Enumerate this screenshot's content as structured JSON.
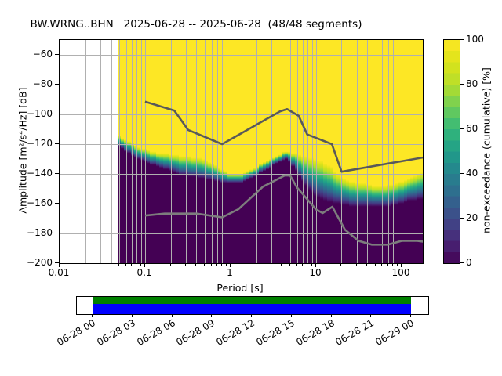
{
  "title": "BW.WRNG..BHN   2025-06-28 -- 2025-06-28  (48/48 segments)",
  "station": "BW.WRNG..BHN",
  "date_range": "2025-06-28 -- 2025-06-28",
  "segments": "48/48 segments",
  "axes": {
    "xlabel": "Period [s]",
    "ylabel": "Amplitude [m²/s⁴/Hz] [dB]",
    "x_tick_labels": [
      "0.01",
      "0.1",
      "1",
      "10",
      "100"
    ],
    "y_tick_labels": [
      "−60",
      "−80",
      "−100",
      "−120",
      "−140",
      "−160",
      "−180",
      "−200"
    ]
  },
  "colorbar": {
    "label": "non-exceedance (cumulative) [%]",
    "tick_labels": [
      "0",
      "20",
      "40",
      "60",
      "80",
      "100"
    ],
    "colormap": "viridis"
  },
  "timeline": {
    "tick_labels": [
      "06-28 00",
      "06-28 03",
      "06-28 06",
      "06-28 09",
      "06-28 12",
      "06-28 15",
      "06-28 18",
      "06-28 21",
      "06-29 00"
    ],
    "coverage_color_top": "#008000",
    "coverage_color_bottom": "#0000ff"
  },
  "chart_data": {
    "type": "heatmap",
    "title": "BW.WRNG..BHN   2025-06-28 -- 2025-06-28  (48/48 segments)",
    "xlabel": "Period [s]",
    "ylabel": "Amplitude [m2/s4/Hz] [dB]",
    "x_scale": "log",
    "xlim": [
      0.01,
      179
    ],
    "ylim": [
      -200,
      -50
    ],
    "x_ticks": [
      0.01,
      0.1,
      1,
      10,
      100
    ],
    "y_ticks": [
      -60,
      -80,
      -100,
      -120,
      -140,
      -160,
      -180,
      -200
    ],
    "grid": true,
    "colorbar_label": "non-exceedance (cumulative) [%]",
    "colorbar_range": [
      0,
      100
    ],
    "colorbar_ticks": [
      0,
      20,
      40,
      60,
      80,
      100
    ],
    "data_period_range": [
      0.048,
      179
    ],
    "distribution_band": {
      "description": "PPSD amplitude band per period: dB level at 0% and 100% non-exceedance",
      "periods": [
        0.048,
        0.06,
        0.08,
        0.105,
        0.14,
        0.19,
        0.26,
        0.36,
        0.5,
        0.7,
        0.95,
        1.3,
        1.8,
        2.5,
        3.4,
        4.5,
        5.6,
        7.5,
        9.5,
        12,
        15,
        19,
        25,
        33,
        45,
        62,
        85,
        120,
        179
      ],
      "db_at_0pct": [
        -121,
        -125,
        -129.5,
        -132.5,
        -135,
        -137.5,
        -140.5,
        -142,
        -143.5,
        -145,
        -146.5,
        -146.5,
        -143,
        -138,
        -133.5,
        -129.5,
        -136,
        -148,
        -154,
        -157.5,
        -159,
        -160.5,
        -161.5,
        -162,
        -162.5,
        -162.5,
        -161,
        -158.5,
        -156.5
      ],
      "db_at_100pct": [
        -113.5,
        -117,
        -121,
        -124,
        -125.5,
        -126.5,
        -127.5,
        -128.5,
        -130,
        -135,
        -139.5,
        -140.5,
        -136.5,
        -132,
        -128,
        -124.5,
        -126,
        -128,
        -129.5,
        -131.5,
        -135,
        -141.5,
        -144.5,
        -146,
        -147.5,
        -148,
        -146.5,
        -143,
        -138.5
      ]
    },
    "noise_models": {
      "high_noise_model": {
        "name": "Peterson NHNM",
        "color": "#595959",
        "periods": [
          0.1,
          0.22,
          0.32,
          0.8,
          3.8,
          4.6,
          6.3,
          7.9,
          15.4,
          20,
          179
        ],
        "db": [
          -91.5,
          -97.4,
          -110.5,
          -120,
          -98,
          -96.5,
          -101,
          -113.5,
          -120,
          -138.5,
          -129
        ]
      },
      "low_noise_model": {
        "name": "Peterson NLNM",
        "color": "#7d7d7d",
        "periods": [
          0.1,
          0.17,
          0.4,
          0.8,
          1.24,
          2.4,
          4.3,
          5,
          6,
          10,
          12,
          15.6,
          21.9,
          31.6,
          45,
          70,
          101,
          154,
          179
        ],
        "db": [
          -168,
          -166.7,
          -166.7,
          -169.2,
          -163.7,
          -148.6,
          -141.1,
          -141.1,
          -149,
          -163.8,
          -166.3,
          -162.1,
          -177.5,
          -185,
          -187.5,
          -187.5,
          -185,
          -185,
          -185.5
        ]
      }
    },
    "timeline": {
      "labels": [
        "06-28 00",
        "06-28 03",
        "06-28 06",
        "06-28 09",
        "06-28 12",
        "06-28 15",
        "06-28 18",
        "06-28 21",
        "06-29 00"
      ],
      "coverage_start": "06-28 00",
      "coverage_end": "06-29 00"
    }
  }
}
